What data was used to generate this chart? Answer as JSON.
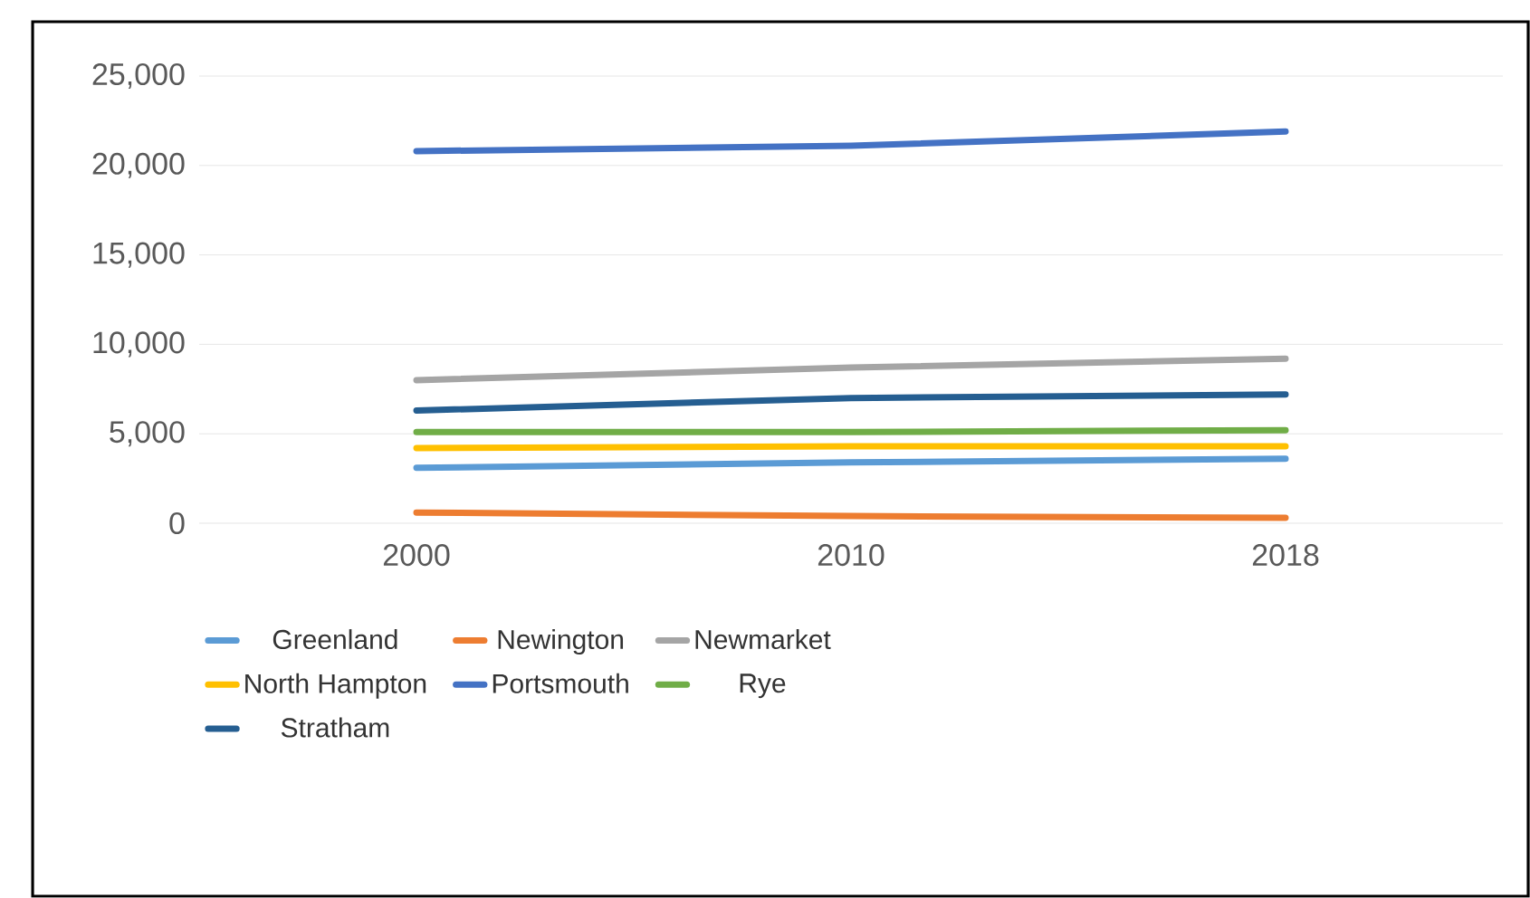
{
  "chart_data": {
    "type": "line",
    "categories": [
      "2000",
      "2010",
      "2018"
    ],
    "series": [
      {
        "name": "Greenland",
        "color": "#5b9bd5",
        "values": [
          3100,
          3400,
          3600
        ]
      },
      {
        "name": "Newington",
        "color": "#ed7d31",
        "values": [
          600,
          400,
          300
        ]
      },
      {
        "name": "Newmarket",
        "color": "#a5a5a5",
        "values": [
          8000,
          8700,
          9200
        ]
      },
      {
        "name": "North Hampton",
        "color": "#ffc000",
        "values": [
          4200,
          4300,
          4300
        ]
      },
      {
        "name": "Portsmouth",
        "color": "#4472c4",
        "values": [
          20800,
          21100,
          21900
        ]
      },
      {
        "name": "Rye",
        "color": "#70ad47",
        "values": [
          5100,
          5100,
          5200
        ]
      },
      {
        "name": "Stratham",
        "color": "#255e91",
        "values": [
          6300,
          7000,
          7200
        ]
      }
    ],
    "ylim": [
      0,
      25000
    ],
    "yticks": [
      {
        "value": 0,
        "label": "0"
      },
      {
        "value": 5000,
        "label": "5,000"
      },
      {
        "value": 10000,
        "label": "10,000"
      },
      {
        "value": 15000,
        "label": "15,000"
      },
      {
        "value": 20000,
        "label": "20,000"
      },
      {
        "value": 25000,
        "label": "25,000"
      }
    ],
    "grid": "y",
    "legend": "bottom",
    "marker": "none",
    "line_style": "solid"
  }
}
